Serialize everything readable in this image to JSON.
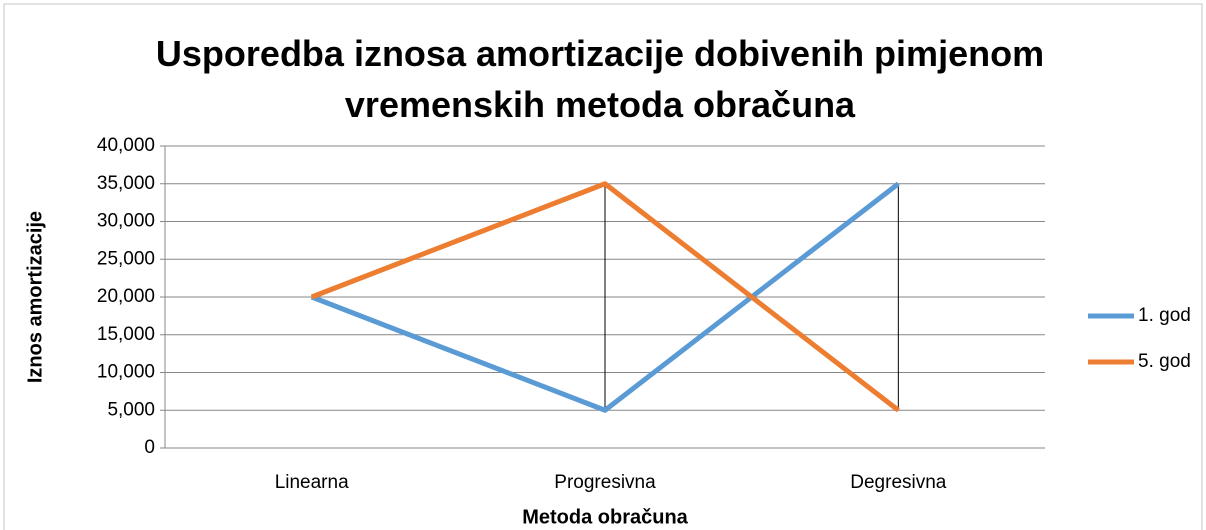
{
  "chart_data": {
    "type": "line",
    "title": "Usporedba iznosa amortizacije dobivenih pimjenom vremenskih metoda obračuna",
    "xlabel": "Metoda obračuna",
    "ylabel": "Iznos amortizacije",
    "categories": [
      "Linearna",
      "Progresivna",
      "Degresivna"
    ],
    "series": [
      {
        "name": "1. god",
        "color": "#5b9bd5",
        "values": [
          20000,
          5000,
          35000
        ]
      },
      {
        "name": "5. god",
        "color": "#ed7d31",
        "values": [
          20000,
          35000,
          5000
        ]
      }
    ],
    "ylim": [
      0,
      40000
    ],
    "yticks": [
      0,
      {
        "value": 5000,
        "label": "5,000"
      },
      {
        "value": 10000,
        "label": "10,000"
      },
      {
        "value": 15000,
        "label": "15,000"
      },
      {
        "value": 20000,
        "label": "20,000"
      },
      {
        "value": 25000,
        "label": "25,000"
      },
      {
        "value": 30000,
        "label": "30,000"
      },
      {
        "value": 35000,
        "label": "35,000"
      },
      {
        "value": 40000,
        "label": "40,000"
      }
    ],
    "grid": true,
    "high_low_lines": true,
    "legend": "right"
  }
}
